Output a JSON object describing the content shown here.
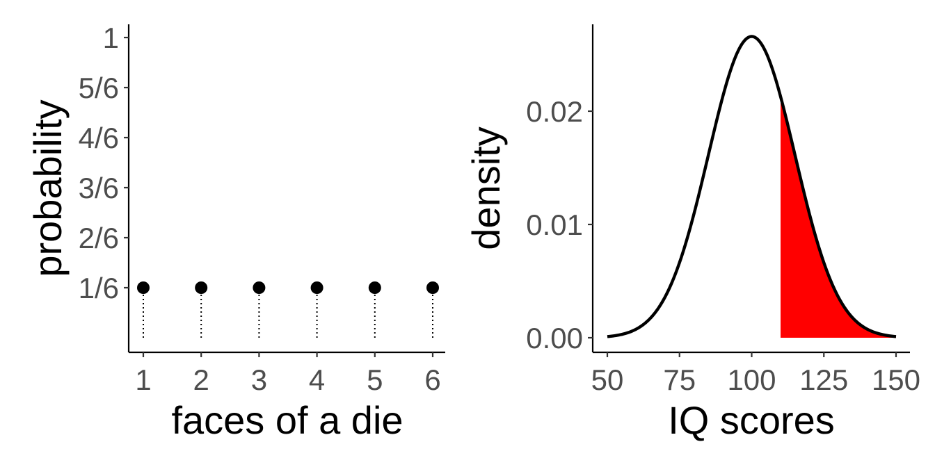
{
  "chart_data": [
    {
      "type": "scatter",
      "subtype": "lollipop",
      "xlabel": "faces of a die",
      "ylabel": "probability",
      "x": [
        1,
        2,
        3,
        4,
        5,
        6
      ],
      "y": [
        0.16667,
        0.16667,
        0.16667,
        0.16667,
        0.16667,
        0.16667
      ],
      "xticks": [
        "1",
        "2",
        "3",
        "4",
        "5",
        "6"
      ],
      "yticks": [
        {
          "value": 0.16667,
          "label": "1/6"
        },
        {
          "value": 0.33333,
          "label": "2/6"
        },
        {
          "value": 0.5,
          "label": "3/6"
        },
        {
          "value": 0.66667,
          "label": "4/6"
        },
        {
          "value": 0.83333,
          "label": "5/6"
        },
        {
          "value": 1,
          "label": "1"
        }
      ],
      "ylim": [
        0,
        1
      ],
      "grid": false,
      "point_color": "#000000",
      "stem_style": "dotted"
    },
    {
      "type": "area",
      "subtype": "normal-density",
      "xlabel": "IQ scores",
      "ylabel": "density",
      "distribution": {
        "mean": 100,
        "sd": 15
      },
      "x_range": [
        50,
        150
      ],
      "shaded_from": 110,
      "shaded_to": 150,
      "xticks": [
        50,
        75,
        100,
        125,
        150
      ],
      "yticks": [
        {
          "value": 0,
          "label": "0.00"
        },
        {
          "value": 0.01,
          "label": "0.01"
        },
        {
          "value": 0.02,
          "label": "0.02"
        }
      ],
      "xlim": [
        50,
        150
      ],
      "grid": false,
      "line_color": "#000000",
      "fill_color": "#ff0000"
    }
  ]
}
